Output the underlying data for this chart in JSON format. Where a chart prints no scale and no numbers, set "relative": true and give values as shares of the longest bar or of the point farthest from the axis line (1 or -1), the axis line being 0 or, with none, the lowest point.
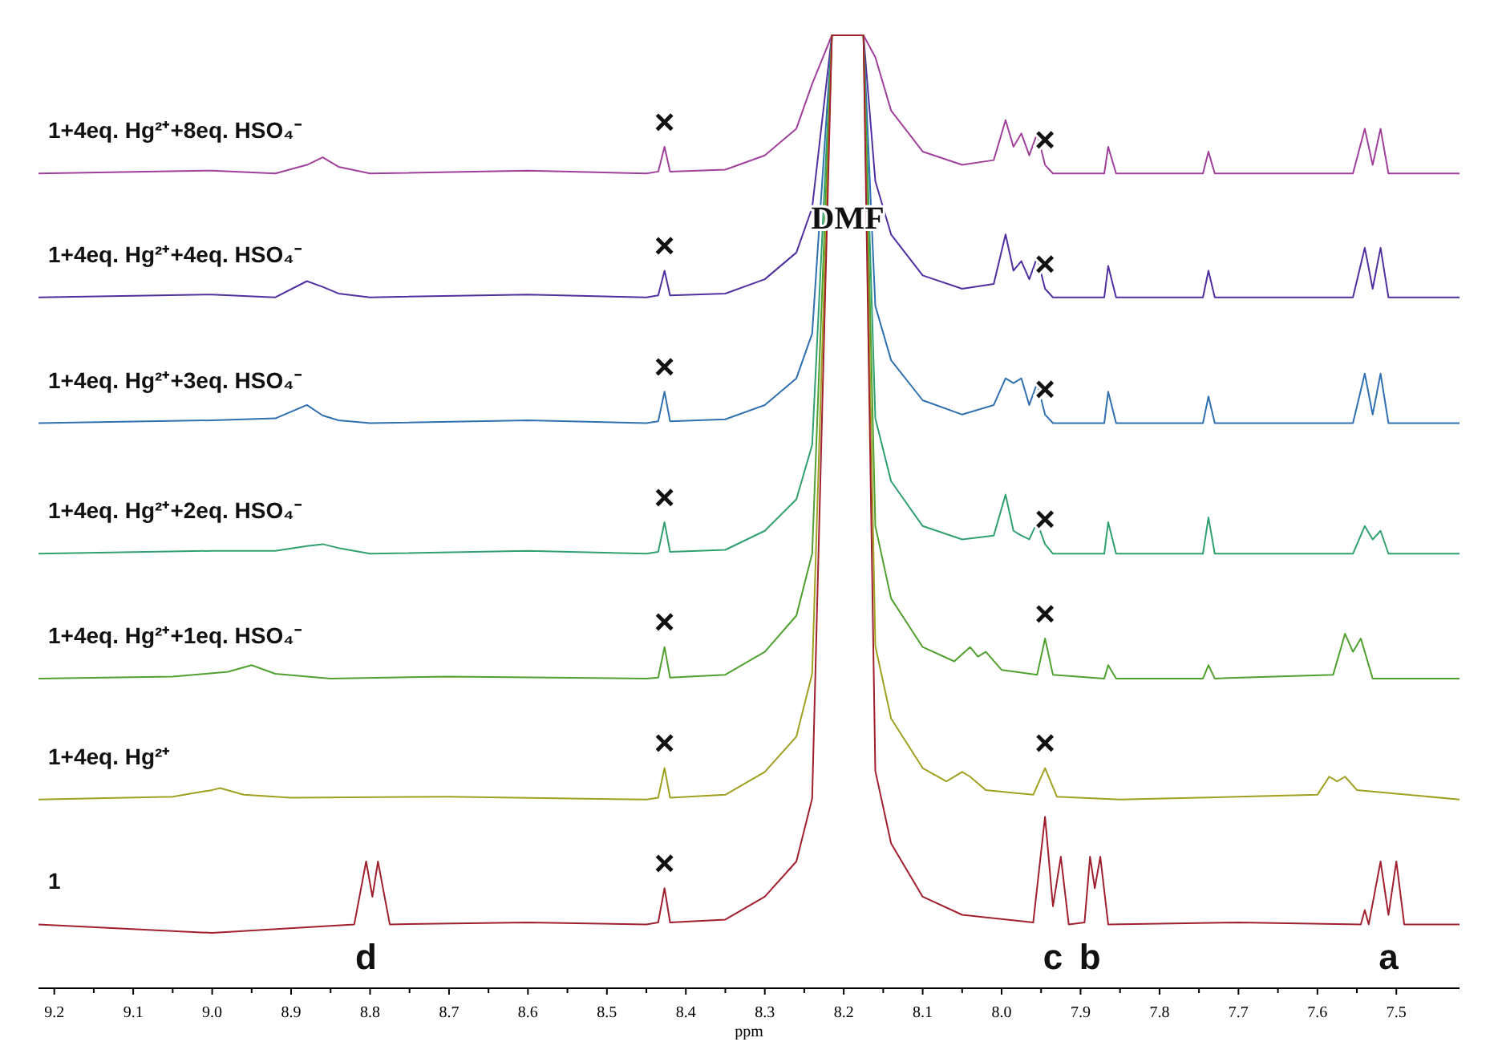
{
  "chart_data": {
    "type": "line",
    "relative": true,
    "xlabel": "ppm",
    "xlim": [
      9.22,
      7.42
    ],
    "xticks": [
      9.2,
      9.1,
      {
        "value": 9,
        "label": "9.0"
      },
      8.9,
      8.8,
      8.7,
      8.6,
      8.5,
      8.4,
      8.3,
      8.2,
      8.1,
      {
        "value": 8,
        "label": "8.0"
      },
      7.9,
      7.8,
      7.7,
      7.6,
      7.5
    ],
    "series": [
      {
        "name": "1+4eq. Hg²⁺+8eq. HSO₄⁻",
        "color": "#a0409a",
        "x": [
          9.22,
          9.0,
          8.92,
          8.88,
          8.86,
          8.84,
          8.8,
          8.6,
          8.45,
          8.435,
          8.427,
          8.42,
          8.35,
          8.3,
          8.26,
          8.24,
          8.215,
          8.175,
          8.16,
          8.14,
          8.1,
          8.05,
          8.01,
          7.995,
          7.985,
          7.975,
          7.965,
          7.955,
          7.945,
          7.935,
          7.87,
          7.865,
          7.855,
          7.745,
          7.738,
          7.73,
          7.555,
          7.54,
          7.53,
          7.52,
          7.51,
          7.42
        ],
        "values": [
          0.855,
          0.858,
          0.855,
          0.864,
          0.872,
          0.862,
          0.855,
          0.858,
          0.855,
          0.857,
          0.883,
          0.857,
          0.859,
          0.874,
          0.902,
          0.949,
          1,
          1,
          0.977,
          0.921,
          0.878,
          0.864,
          0.869,
          0.911,
          0.883,
          0.897,
          0.874,
          0.897,
          0.864,
          0.855,
          0.855,
          0.883,
          0.855,
          0.855,
          0.878,
          0.855,
          0.855,
          0.902,
          0.864,
          0.902,
          0.855,
          0.855
        ]
      },
      {
        "name": "1+4eq. Hg²⁺+4eq. HSO₄⁻",
        "color": "#5030a0",
        "x": [
          9.22,
          9.0,
          8.92,
          8.88,
          8.86,
          8.84,
          8.8,
          8.6,
          8.45,
          8.435,
          8.427,
          8.42,
          8.35,
          8.3,
          8.26,
          8.24,
          8.215,
          8.175,
          8.16,
          8.14,
          8.1,
          8.05,
          8.01,
          7.995,
          7.985,
          7.975,
          7.965,
          7.955,
          7.945,
          7.935,
          7.87,
          7.865,
          7.855,
          7.745,
          7.738,
          7.73,
          7.555,
          7.54,
          7.53,
          7.52,
          7.51,
          7.42
        ],
        "values": [
          0.725,
          0.728,
          0.725,
          0.742,
          0.736,
          0.729,
          0.725,
          0.728,
          0.725,
          0.727,
          0.753,
          0.727,
          0.729,
          0.744,
          0.772,
          0.819,
          1,
          1,
          0.847,
          0.791,
          0.748,
          0.734,
          0.739,
          0.791,
          0.753,
          0.763,
          0.744,
          0.767,
          0.734,
          0.725,
          0.725,
          0.758,
          0.725,
          0.725,
          0.753,
          0.725,
          0.725,
          0.777,
          0.734,
          0.777,
          0.725,
          0.725
        ]
      },
      {
        "name": "1+4eq. Hg²⁺+3eq. HSO₄⁻",
        "color": "#3070b0",
        "x": [
          9.22,
          9.0,
          8.92,
          8.88,
          8.86,
          8.84,
          8.8,
          8.6,
          8.45,
          8.435,
          8.427,
          8.42,
          8.35,
          8.3,
          8.26,
          8.24,
          8.215,
          8.175,
          8.16,
          8.14,
          8.1,
          8.05,
          8.01,
          7.995,
          7.985,
          7.975,
          7.965,
          7.955,
          7.945,
          7.935,
          7.87,
          7.865,
          7.855,
          7.745,
          7.738,
          7.73,
          7.555,
          7.54,
          7.53,
          7.52,
          7.51,
          7.42
        ],
        "values": [
          0.593,
          0.596,
          0.598,
          0.612,
          0.601,
          0.596,
          0.593,
          0.596,
          0.593,
          0.595,
          0.626,
          0.595,
          0.597,
          0.612,
          0.64,
          0.687,
          1,
          1,
          0.716,
          0.659,
          0.617,
          0.602,
          0.612,
          0.64,
          0.635,
          0.64,
          0.612,
          0.635,
          0.602,
          0.593,
          0.593,
          0.626,
          0.593,
          0.593,
          0.621,
          0.593,
          0.593,
          0.645,
          0.602,
          0.645,
          0.593,
          0.593
        ]
      },
      {
        "name": "1+4eq. Hg²⁺+2eq. HSO₄⁻",
        "color": "#30a070",
        "x": [
          9.22,
          9.0,
          8.92,
          8.88,
          8.86,
          8.84,
          8.8,
          8.6,
          8.45,
          8.435,
          8.427,
          8.42,
          8.35,
          8.3,
          8.26,
          8.24,
          8.215,
          8.175,
          8.16,
          8.14,
          8.1,
          8.05,
          8.01,
          7.995,
          7.985,
          7.975,
          7.965,
          7.955,
          7.945,
          7.935,
          7.87,
          7.865,
          7.855,
          7.745,
          7.738,
          7.73,
          7.555,
          7.54,
          7.53,
          7.52,
          7.51,
          7.42
        ],
        "values": [
          0.456,
          0.459,
          0.459,
          0.464,
          0.466,
          0.462,
          0.456,
          0.459,
          0.456,
          0.458,
          0.489,
          0.458,
          0.46,
          0.48,
          0.513,
          0.57,
          1,
          1,
          0.598,
          0.532,
          0.485,
          0.471,
          0.475,
          0.518,
          0.48,
          0.475,
          0.471,
          0.489,
          0.466,
          0.456,
          0.456,
          0.489,
          0.456,
          0.456,
          0.494,
          0.456,
          0.456,
          0.485,
          0.471,
          0.48,
          0.456,
          0.456
        ]
      },
      {
        "name": "1+4eq. Hg²⁺+1eq. HSO₄⁻",
        "color": "#50a030",
        "x": [
          9.22,
          9.05,
          8.98,
          8.95,
          8.92,
          8.85,
          8.7,
          8.45,
          8.435,
          8.427,
          8.42,
          8.35,
          8.3,
          8.26,
          8.24,
          8.215,
          8.175,
          8.16,
          8.14,
          8.1,
          8.06,
          8.04,
          8.03,
          8.02,
          8.0,
          7.955,
          7.945,
          7.935,
          7.87,
          7.865,
          7.855,
          7.745,
          7.738,
          7.73,
          7.58,
          7.565,
          7.555,
          7.545,
          7.53,
          7.42
        ],
        "values": [
          0.325,
          0.327,
          0.332,
          0.339,
          0.33,
          0.325,
          0.327,
          0.325,
          0.326,
          0.358,
          0.326,
          0.329,
          0.353,
          0.391,
          0.456,
          1,
          1,
          0.485,
          0.409,
          0.358,
          0.343,
          0.358,
          0.348,
          0.353,
          0.334,
          0.329,
          0.367,
          0.329,
          0.325,
          0.339,
          0.325,
          0.325,
          0.339,
          0.325,
          0.329,
          0.372,
          0.353,
          0.367,
          0.325,
          0.325
        ]
      },
      {
        "name": "1+4eq. Hg²⁺",
        "color": "#a0a020",
        "x": [
          9.22,
          9.05,
          9.0,
          8.99,
          8.96,
          8.9,
          8.7,
          8.45,
          8.435,
          8.427,
          8.42,
          8.35,
          8.3,
          8.26,
          8.24,
          8.215,
          8.175,
          8.16,
          8.14,
          8.1,
          8.07,
          8.05,
          8.04,
          8.02,
          7.96,
          7.945,
          7.93,
          7.85,
          7.6,
          7.585,
          7.575,
          7.565,
          7.55,
          7.42
        ],
        "values": [
          0.198,
          0.201,
          0.208,
          0.21,
          0.203,
          0.2,
          0.201,
          0.198,
          0.2,
          0.231,
          0.2,
          0.203,
          0.227,
          0.264,
          0.33,
          1,
          1,
          0.359,
          0.283,
          0.231,
          0.217,
          0.227,
          0.222,
          0.208,
          0.203,
          0.231,
          0.201,
          0.198,
          0.203,
          0.222,
          0.217,
          0.222,
          0.208,
          0.198
        ]
      },
      {
        "name": "1",
        "color": "#a02030",
        "x": [
          9.22,
          9.0,
          8.82,
          8.805,
          8.797,
          8.79,
          8.775,
          8.6,
          8.45,
          8.435,
          8.427,
          8.42,
          8.35,
          8.3,
          8.26,
          8.24,
          8.215,
          8.175,
          8.16,
          8.14,
          8.1,
          8.05,
          7.96,
          7.945,
          7.935,
          7.925,
          7.915,
          7.895,
          7.888,
          7.882,
          7.875,
          7.865,
          7.7,
          7.545,
          7.54,
          7.535,
          7.52,
          7.51,
          7.5,
          7.49,
          7.42
        ],
        "values": [
          0.067,
          0.058,
          0.067,
          0.133,
          0.096,
          0.133,
          0.067,
          0.069,
          0.067,
          0.069,
          0.105,
          0.069,
          0.072,
          0.096,
          0.133,
          0.199,
          1,
          1,
          0.228,
          0.152,
          0.096,
          0.077,
          0.069,
          0.18,
          0.086,
          0.138,
          0.067,
          0.069,
          0.138,
          0.105,
          0.138,
          0.067,
          0.069,
          0.067,
          0.082,
          0.067,
          0.133,
          0.077,
          0.133,
          0.067,
          0.067
        ]
      }
    ],
    "annotations": [
      "DMF",
      {
        "text": "×",
        "x": 8.427,
        "y": 0.883
      },
      {
        "text": "×",
        "x": 7.945,
        "y": 0.864
      },
      {
        "text": "×",
        "x": 8.427,
        "y": 0.753
      },
      {
        "text": "×",
        "x": 7.945,
        "y": 0.734
      },
      {
        "text": "×",
        "x": 8.427,
        "y": 0.626
      },
      {
        "text": "×",
        "x": 7.945,
        "y": 0.602
      },
      {
        "text": "×",
        "x": 8.427,
        "y": 0.489
      },
      {
        "text": "×",
        "x": 7.945,
        "y": 0.466
      },
      {
        "text": "×",
        "x": 8.427,
        "y": 0.358
      },
      {
        "text": "×",
        "x": 7.945,
        "y": 0.367
      },
      {
        "text": "×",
        "x": 8.427,
        "y": 0.231
      },
      {
        "text": "×",
        "x": 7.945,
        "y": 0.231
      },
      {
        "text": "×",
        "x": 8.427,
        "y": 0.105
      },
      {
        "text": "d",
        "x": 8.805,
        "y": 0.133
      },
      {
        "text": "c",
        "x": 7.935,
        "y": 0.086
      },
      {
        "text": "b",
        "x": 7.888,
        "y": 0.138
      },
      {
        "text": "a",
        "x": 7.51,
        "y": 0.077
      }
    ]
  }
}
